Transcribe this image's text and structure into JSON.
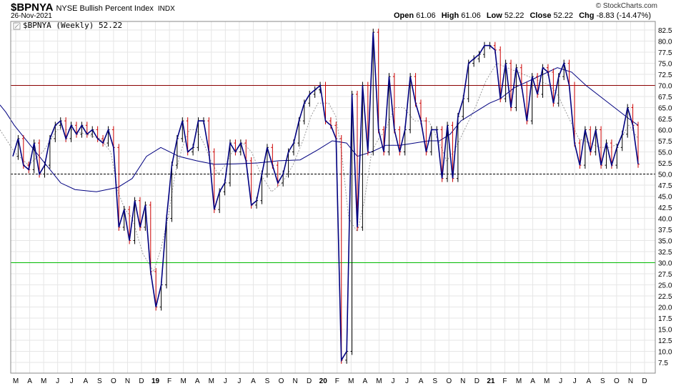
{
  "header": {
    "symbol": "$BPNYA",
    "description": "NYSE Bullish Percent Index",
    "exchange": "INDX",
    "date": "26-Nov-2021",
    "copyright": "© StockCharts.com",
    "ohlc": {
      "open_label": "Open",
      "open": "61.06",
      "high_label": "High",
      "high": "61.06",
      "low_label": "Low",
      "low": "52.22",
      "close_label": "Close",
      "close": "52.22",
      "chg_label": "Chg",
      "chg": "-8.83 (-14.47%)"
    }
  },
  "colors": {
    "price": "#000000",
    "close_line": "#000080",
    "ma_long": "#000080",
    "ma_short": "#9a9a9a",
    "down_bar": "#cc0000",
    "ref_high": "#8b0000",
    "ref_low": "#00bb00",
    "ref_mid": "#000000",
    "grid": "#e6e6e6"
  },
  "chart_data": {
    "type": "line",
    "legend": "$BPNYA (Weekly) 52.22",
    "ylim": [
      5,
      85
    ],
    "y_ticks": [
      "82.5",
      "80.0",
      "77.5",
      "75.0",
      "72.5",
      "70.0",
      "67.5",
      "65.0",
      "62.5",
      "60.0",
      "57.5",
      "55.0",
      "52.5",
      "50.0",
      "47.5",
      "45.0",
      "42.5",
      "40.0",
      "37.5",
      "35.0",
      "32.5",
      "30.0",
      "27.5",
      "25.0",
      "22.5",
      "20.0",
      "17.5",
      "15.0",
      "12.5",
      "10.0",
      "7.5"
    ],
    "x_ticks": [
      "M",
      "A",
      "M",
      "J",
      "J",
      "A",
      "S",
      "O",
      "N",
      "D",
      "19",
      "F",
      "M",
      "A",
      "M",
      "J",
      "J",
      "A",
      "S",
      "O",
      "N",
      "D",
      "20",
      "F",
      "M",
      "A",
      "M",
      "J",
      "J",
      "A",
      "S",
      "O",
      "N",
      "D",
      "21",
      "F",
      "M",
      "A",
      "M",
      "J",
      "J",
      "A",
      "S",
      "O",
      "N",
      "D"
    ],
    "x_ticks_bold": [
      "19",
      "20",
      "21"
    ],
    "reference_lines": [
      {
        "value": 70,
        "style": "solid",
        "color": "#8b0000"
      },
      {
        "value": 50,
        "style": "dashed",
        "color": "#000000"
      },
      {
        "value": 30,
        "style": "solid",
        "color": "#00bb00"
      }
    ],
    "close_series": [
      54,
      58,
      52,
      51,
      57,
      50,
      52,
      58,
      61,
      62,
      58,
      61,
      59,
      61,
      59,
      60,
      58,
      57,
      60,
      56,
      38,
      42,
      35,
      44,
      38,
      43,
      28,
      20,
      25,
      40,
      52,
      58,
      62,
      55,
      56,
      62,
      62,
      55,
      42,
      46,
      48,
      57,
      55,
      57,
      53,
      43,
      44,
      50,
      56,
      52,
      48,
      50,
      55,
      57,
      62,
      66,
      68,
      69,
      70,
      62,
      61,
      58,
      8,
      10,
      68,
      38,
      70,
      55,
      82,
      60,
      55,
      72,
      60,
      55,
      60,
      72,
      66,
      62,
      55,
      60,
      60,
      49,
      61,
      49,
      63,
      67,
      75,
      76,
      77,
      79,
      79,
      78,
      67,
      75,
      65,
      74,
      70,
      62,
      72,
      68,
      74,
      73,
      66,
      72,
      75,
      70,
      57,
      52,
      60,
      55,
      60,
      52,
      57,
      52,
      56,
      59,
      65,
      61,
      52.22
    ],
    "ma_long_points": [
      [
        0,
        65.6
      ],
      [
        8,
        64
      ],
      [
        20,
        61
      ],
      [
        35,
        58
      ],
      [
        60,
        53
      ],
      [
        85,
        48
      ],
      [
        105,
        46.5
      ],
      [
        135,
        46
      ],
      [
        165,
        47
      ],
      [
        185,
        49
      ],
      [
        205,
        54
      ],
      [
        225,
        56
      ],
      [
        250,
        54
      ],
      [
        275,
        53
      ],
      [
        300,
        52.2
      ],
      [
        330,
        52.3
      ],
      [
        360,
        52.5
      ],
      [
        390,
        53
      ],
      [
        420,
        53.2
      ],
      [
        445,
        55.5
      ],
      [
        465,
        57.5
      ],
      [
        485,
        57
      ],
      [
        500,
        54
      ],
      [
        520,
        55
      ],
      [
        540,
        56.5
      ],
      [
        560,
        56.5
      ],
      [
        580,
        57
      ],
      [
        600,
        57.5
      ],
      [
        615,
        57.5
      ],
      [
        630,
        59
      ],
      [
        645,
        62
      ],
      [
        665,
        64
      ],
      [
        685,
        66
      ],
      [
        700,
        67
      ],
      [
        720,
        69.5
      ],
      [
        740,
        71
      ],
      [
        760,
        72.5
      ],
      [
        780,
        74
      ],
      [
        800,
        73
      ],
      [
        820,
        70
      ],
      [
        840,
        67.5
      ],
      [
        860,
        65
      ],
      [
        880,
        62.5
      ],
      [
        893,
        61
      ]
    ],
    "ma_short_points": [
      [
        0,
        60
      ],
      [
        20,
        55
      ],
      [
        40,
        52
      ],
      [
        60,
        55
      ],
      [
        80,
        60
      ],
      [
        100,
        60
      ],
      [
        120,
        59
      ],
      [
        140,
        58
      ],
      [
        155,
        55
      ],
      [
        165,
        46
      ],
      [
        175,
        42
      ],
      [
        185,
        40
      ],
      [
        200,
        32
      ],
      [
        215,
        28
      ],
      [
        225,
        33
      ],
      [
        235,
        40
      ],
      [
        245,
        50
      ],
      [
        255,
        56
      ],
      [
        265,
        60
      ],
      [
        275,
        60
      ],
      [
        285,
        57
      ],
      [
        295,
        53
      ],
      [
        305,
        50
      ],
      [
        315,
        52
      ],
      [
        325,
        55
      ],
      [
        340,
        57
      ],
      [
        352,
        55
      ],
      [
        365,
        50
      ],
      [
        380,
        46
      ],
      [
        395,
        48
      ],
      [
        410,
        52
      ],
      [
        425,
        58
      ],
      [
        435,
        63
      ],
      [
        445,
        66
      ],
      [
        460,
        66
      ],
      [
        470,
        63
      ],
      [
        478,
        55
      ],
      [
        488,
        40
      ],
      [
        500,
        37
      ],
      [
        510,
        44
      ],
      [
        520,
        55
      ],
      [
        530,
        58
      ],
      [
        540,
        60
      ],
      [
        552,
        65
      ],
      [
        565,
        65
      ],
      [
        580,
        62
      ],
      [
        600,
        62
      ],
      [
        615,
        57
      ],
      [
        625,
        53
      ],
      [
        635,
        55
      ],
      [
        650,
        60
      ],
      [
        665,
        65
      ],
      [
        680,
        71
      ],
      [
        695,
        75
      ],
      [
        710,
        74
      ],
      [
        725,
        73
      ],
      [
        740,
        72
      ],
      [
        755,
        71
      ],
      [
        770,
        70
      ],
      [
        780,
        68
      ],
      [
        795,
        63
      ],
      [
        810,
        58
      ],
      [
        825,
        57
      ],
      [
        840,
        56
      ],
      [
        855,
        56
      ],
      [
        865,
        57
      ],
      [
        880,
        61
      ],
      [
        893,
        58
      ]
    ]
  }
}
